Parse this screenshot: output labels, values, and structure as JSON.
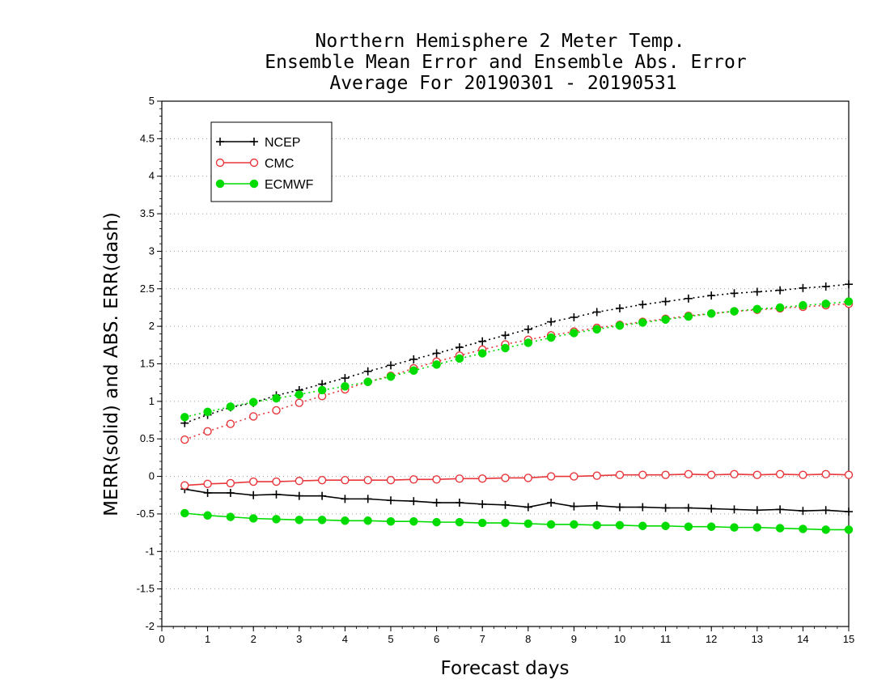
{
  "chart_data": {
    "type": "line",
    "title": [
      "Northern Hemisphere 2 Meter Temp.",
      "Ensemble Mean Error and Ensemble Abs. Error",
      "Average For 20190301 - 20190531"
    ],
    "xlabel": "Forecast days",
    "ylabel": "MERR(solid) and ABS. ERR(dash)",
    "xlim": [
      0,
      15
    ],
    "ylim": [
      -2,
      5
    ],
    "xticks": [
      "0",
      "1",
      "2",
      "3",
      "4",
      "5",
      "6",
      "7",
      "8",
      "9",
      "10",
      "11",
      "12",
      "13",
      "14",
      "15"
    ],
    "yticks": [
      "-2",
      "-1.5",
      "-1",
      "-0.5",
      "0",
      "0.5",
      "1",
      "1.5",
      "2",
      "2.5",
      "3",
      "3.5",
      "4",
      "4.5",
      "5"
    ],
    "grid": "horizontal dotted",
    "legend_position": "top-left",
    "x": [
      0.5,
      1,
      1.5,
      2,
      2.5,
      3,
      3.5,
      4,
      4.5,
      5,
      5.5,
      6,
      6.5,
      7,
      7.5,
      8,
      8.5,
      9,
      9.5,
      10,
      10.5,
      11,
      11.5,
      12,
      12.5,
      13,
      13.5,
      14,
      14.5,
      15
    ],
    "series": [
      {
        "name": "NCEP",
        "color": "#000000",
        "marker": "plus",
        "merr": [
          -0.17,
          -0.22,
          -0.22,
          -0.25,
          -0.24,
          -0.26,
          -0.26,
          -0.3,
          -0.3,
          -0.32,
          -0.33,
          -0.35,
          -0.35,
          -0.37,
          -0.38,
          -0.41,
          -0.35,
          -0.4,
          -0.39,
          -0.41,
          -0.41,
          -0.42,
          -0.42,
          -0.43,
          -0.44,
          -0.45,
          -0.44,
          -0.46,
          -0.45,
          -0.47
        ],
        "abs_err": [
          0.71,
          0.82,
          0.92,
          0.98,
          1.08,
          1.15,
          1.23,
          1.31,
          1.4,
          1.48,
          1.56,
          1.64,
          1.72,
          1.8,
          1.88,
          1.96,
          2.06,
          2.12,
          2.19,
          2.24,
          2.29,
          2.33,
          2.37,
          2.41,
          2.44,
          2.46,
          2.48,
          2.51,
          2.53,
          2.56
        ]
      },
      {
        "name": "CMC",
        "color": "#e8363b",
        "marker": "open-circle",
        "merr": [
          -0.12,
          -0.1,
          -0.09,
          -0.07,
          -0.07,
          -0.06,
          -0.05,
          -0.05,
          -0.05,
          -0.05,
          -0.04,
          -0.04,
          -0.03,
          -0.03,
          -0.02,
          -0.02,
          0.0,
          0.0,
          0.01,
          0.02,
          0.02,
          0.02,
          0.03,
          0.02,
          0.03,
          0.02,
          0.03,
          0.02,
          0.03,
          0.02
        ],
        "abs_err": [
          0.49,
          0.6,
          0.7,
          0.8,
          0.88,
          0.98,
          1.07,
          1.16,
          1.26,
          1.34,
          1.44,
          1.53,
          1.61,
          1.69,
          1.76,
          1.82,
          1.88,
          1.93,
          1.98,
          2.02,
          2.06,
          2.1,
          2.14,
          2.17,
          2.2,
          2.22,
          2.24,
          2.26,
          2.28,
          2.3
        ]
      },
      {
        "name": "ECMWF",
        "color": "#00dc00",
        "marker": "filled-circle",
        "merr": [
          -0.49,
          -0.52,
          -0.54,
          -0.56,
          -0.57,
          -0.58,
          -0.58,
          -0.59,
          -0.59,
          -0.6,
          -0.6,
          -0.61,
          -0.61,
          -0.62,
          -0.62,
          -0.63,
          -0.64,
          -0.64,
          -0.65,
          -0.65,
          -0.66,
          -0.66,
          -0.67,
          -0.67,
          -0.68,
          -0.68,
          -0.69,
          -0.7,
          -0.71,
          -0.71
        ],
        "abs_err": [
          0.79,
          0.86,
          0.93,
          0.99,
          1.04,
          1.09,
          1.15,
          1.2,
          1.26,
          1.33,
          1.41,
          1.49,
          1.57,
          1.64,
          1.71,
          1.78,
          1.85,
          1.91,
          1.96,
          2.01,
          2.05,
          2.09,
          2.13,
          2.17,
          2.2,
          2.23,
          2.25,
          2.28,
          2.3,
          2.33
        ]
      }
    ]
  }
}
